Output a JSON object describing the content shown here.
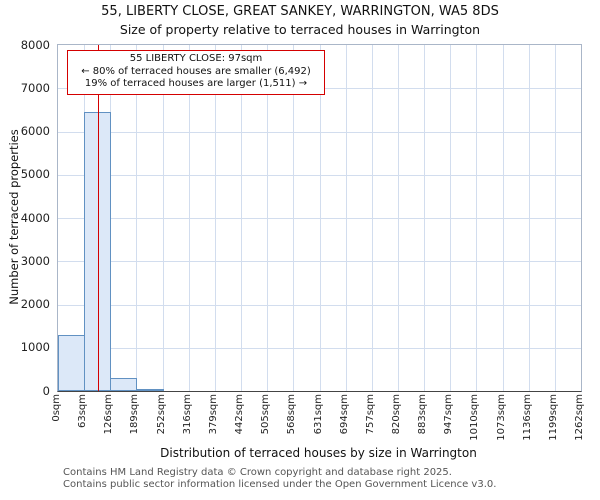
{
  "chart_data": {
    "type": "bar",
    "title": "55, LIBERTY CLOSE, GREAT SANKEY, WARRINGTON, WA5 8DS",
    "subtitle": "Size of property relative to terraced houses in Warrington",
    "xlabel": "Distribution of terraced houses by size in Warrington",
    "ylabel": "Number of terraced properties",
    "ylim": [
      0,
      8000
    ],
    "ytick_step": 1000,
    "bin_width_sqm": 63,
    "categories": [
      "0sqm",
      "63sqm",
      "126sqm",
      "189sqm",
      "252sqm",
      "316sqm",
      "379sqm",
      "442sqm",
      "505sqm",
      "568sqm",
      "631sqm",
      "694sqm",
      "757sqm",
      "820sqm",
      "883sqm",
      "947sqm",
      "1010sqm",
      "1073sqm",
      "1136sqm",
      "1199sqm",
      "1262sqm"
    ],
    "values": [
      1300,
      6450,
      300,
      50,
      0,
      0,
      0,
      0,
      0,
      0,
      0,
      0,
      0,
      0,
      0,
      0,
      0,
      0,
      0,
      0
    ],
    "marker": {
      "value_sqm": 97,
      "color": "#d40000"
    },
    "grid": true,
    "legend": "none",
    "colors": {
      "bar_fill": "#dce8f8",
      "bar_border": "#6191c2",
      "grid": "#d2ddee",
      "marker": "#d40000"
    }
  },
  "annotation": {
    "line1": "55 LIBERTY CLOSE: 97sqm",
    "line2": "← 80% of terraced houses are smaller (6,492)",
    "line3": "19% of terraced houses are larger (1,511) →"
  },
  "footer": {
    "line1": "Contains HM Land Registry data © Crown copyright and database right 2025.",
    "line2": "Contains public sector information licensed under the Open Government Licence v3.0."
  }
}
